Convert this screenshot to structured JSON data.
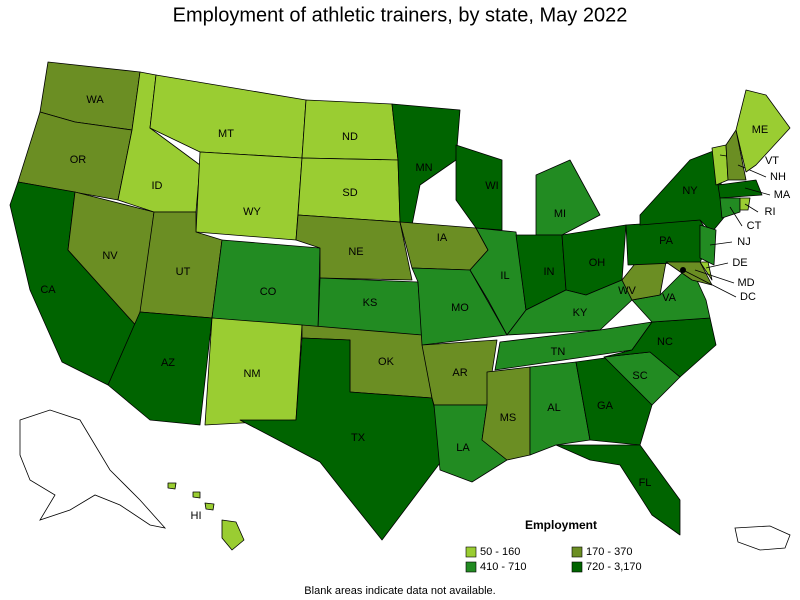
{
  "title": "Employment of athletic trainers, by state, May 2022",
  "states": [
    {
      "abbr": "WA",
      "color": "#6b8e23"
    },
    {
      "abbr": "OR",
      "color": "#6b8e23"
    },
    {
      "abbr": "CA",
      "color": "#006400"
    },
    {
      "abbr": "NV",
      "color": "#6b8e23"
    },
    {
      "abbr": "ID",
      "color": "#9acd32"
    },
    {
      "abbr": "MT",
      "color": "#9acd32"
    },
    {
      "abbr": "WY",
      "color": "#9acd32"
    },
    {
      "abbr": "UT",
      "color": "#6b8e23"
    },
    {
      "abbr": "AZ",
      "color": "#006400"
    },
    {
      "abbr": "CO",
      "color": "#228b22"
    },
    {
      "abbr": "NM",
      "color": "#9acd32"
    },
    {
      "abbr": "ND",
      "color": "#9acd32"
    },
    {
      "abbr": "SD",
      "color": "#9acd32"
    },
    {
      "abbr": "NE",
      "color": "#6b8e23"
    },
    {
      "abbr": "KS",
      "color": "#228b22"
    },
    {
      "abbr": "OK",
      "color": "#6b8e23"
    },
    {
      "abbr": "TX",
      "color": "#006400"
    },
    {
      "abbr": "MN",
      "color": "#006400"
    },
    {
      "abbr": "IA",
      "color": "#6b8e23"
    },
    {
      "abbr": "MO",
      "color": "#228b22"
    },
    {
      "abbr": "AR",
      "color": "#6b8e23"
    },
    {
      "abbr": "LA",
      "color": "#228b22"
    },
    {
      "abbr": "WI",
      "color": "#006400"
    },
    {
      "abbr": "IL",
      "color": "#228b22"
    },
    {
      "abbr": "MI",
      "color": "#228b22"
    },
    {
      "abbr": "IN",
      "color": "#006400"
    },
    {
      "abbr": "OH",
      "color": "#006400"
    },
    {
      "abbr": "KY",
      "color": "#228b22"
    },
    {
      "abbr": "TN",
      "color": "#228b22"
    },
    {
      "abbr": "MS",
      "color": "#6b8e23"
    },
    {
      "abbr": "AL",
      "color": "#228b22"
    },
    {
      "abbr": "GA",
      "color": "#006400"
    },
    {
      "abbr": "FL",
      "color": "#006400"
    },
    {
      "abbr": "SC",
      "color": "#228b22"
    },
    {
      "abbr": "NC",
      "color": "#006400"
    },
    {
      "abbr": "VA",
      "color": "#228b22"
    },
    {
      "abbr": "WV",
      "color": "#6b8e23"
    },
    {
      "abbr": "PA",
      "color": "#006400"
    },
    {
      "abbr": "NY",
      "color": "#006400"
    },
    {
      "abbr": "VT",
      "color": "#9acd32"
    },
    {
      "abbr": "NH",
      "color": "#6b8e23"
    },
    {
      "abbr": "ME",
      "color": "#9acd32"
    },
    {
      "abbr": "MA",
      "color": "#006400"
    },
    {
      "abbr": "CT",
      "color": "#228b22"
    },
    {
      "abbr": "RI",
      "color": "#9acd32"
    },
    {
      "abbr": "NJ",
      "color": "#228b22"
    },
    {
      "abbr": "DE",
      "color": "#9acd32"
    },
    {
      "abbr": "MD",
      "color": "#6b8e23"
    },
    {
      "abbr": "DC",
      "color": "#000000"
    },
    {
      "abbr": "HI",
      "color": "#9acd32"
    }
  ],
  "legend": {
    "title": "Employment",
    "items": [
      {
        "label": "50 - 160",
        "color": "#9acd32"
      },
      {
        "label": "170 - 370",
        "color": "#6b8e23"
      },
      {
        "label": "410 - 710",
        "color": "#228b22"
      },
      {
        "label": "720 - 3,170",
        "color": "#006400"
      }
    ]
  },
  "footnote": "Blank areas indicate data not available."
}
